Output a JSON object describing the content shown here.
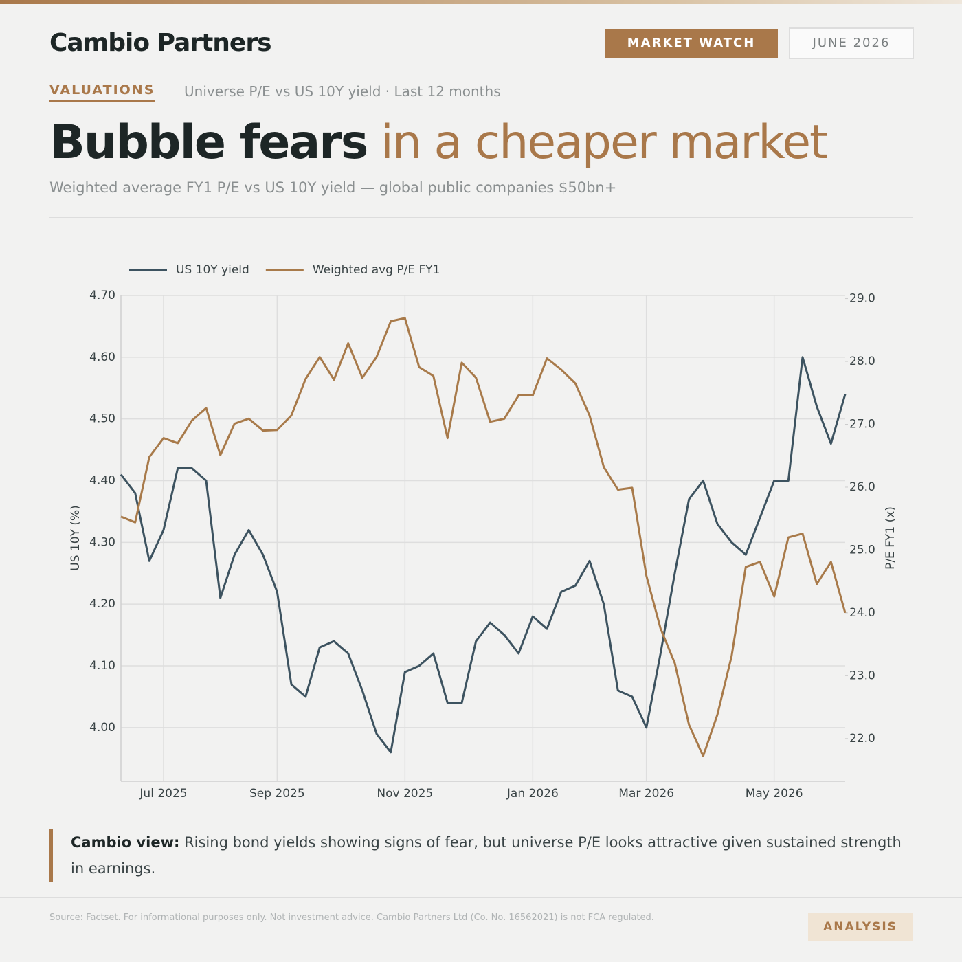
{
  "header": {
    "brand": "Cambio Partners",
    "badge": "MARKET WATCH",
    "date": "JUNE 2026",
    "section": "VALUATIONS",
    "section_note": "Universe P/E vs US 10Y yield · Last 12 months",
    "title_bold": "Bubble fears",
    "title_light": "in a cheaper market",
    "subtitle": "Weighted average FY1 P/E vs US 10Y yield — global public companies $50bn+"
  },
  "chart_data": {
    "type": "line",
    "categories": [
      null,
      null,
      null,
      "Jul 2025",
      null,
      null,
      null,
      null,
      null,
      null,
      null,
      "Sep 2025",
      null,
      null,
      null,
      null,
      null,
      null,
      null,
      null,
      "Nov 2025",
      null,
      null,
      null,
      null,
      null,
      null,
      null,
      null,
      "Jan 2026",
      null,
      null,
      null,
      null,
      null,
      null,
      null,
      "Mar 2026",
      null,
      null,
      null,
      null,
      null,
      null,
      null,
      null,
      "May 2026",
      null,
      null,
      null,
      null,
      null
    ],
    "series": [
      {
        "name": "US 10Y yield",
        "color": "#3d5360",
        "values": [
          4.41,
          4.38,
          4.27,
          4.32,
          4.42,
          4.42,
          4.4,
          4.21,
          4.28,
          4.32,
          4.28,
          4.22,
          4.07,
          4.05,
          4.13,
          4.14,
          4.12,
          4.06,
          3.99,
          3.96,
          4.09,
          4.1,
          4.12,
          4.04,
          4.04,
          4.14,
          4.17,
          4.15,
          4.12,
          4.18,
          4.16,
          4.22,
          4.23,
          4.27,
          4.2,
          4.06,
          4.05,
          4.0,
          4.12,
          4.25,
          4.37,
          4.4,
          4.33,
          4.3,
          4.28,
          4.34,
          4.4,
          4.4,
          4.6,
          4.52,
          4.46,
          4.54
        ]
      },
      {
        "name": "Weighted avg P/E FY1",
        "color": "#a87a4a",
        "axis": "y2",
        "values": [
          25.53,
          25.44,
          26.48,
          26.78,
          26.7,
          27.06,
          27.26,
          26.51,
          27.01,
          27.09,
          26.9,
          26.91,
          27.14,
          27.72,
          28.07,
          27.71,
          28.29,
          27.74,
          28.07,
          28.64,
          28.69,
          27.91,
          27.77,
          26.78,
          27.98,
          27.74,
          27.04,
          27.09,
          27.46,
          27.46,
          28.05,
          27.87,
          27.65,
          27.14,
          26.32,
          25.96,
          25.99,
          24.59,
          23.75,
          23.2,
          22.22,
          21.72,
          22.38,
          23.31,
          24.73,
          24.81,
          24.26,
          25.2,
          25.26,
          24.46,
          24.81,
          24.0
        ]
      }
    ],
    "ylabel": "US 10Y (%)",
    "y2label": "P/E FY1 (x)",
    "ylim": [
      3.913,
      4.7
    ],
    "yticks": [
      {
        "value": 4.0,
        "label": "4.00"
      },
      {
        "value": 4.1,
        "label": "4.10"
      },
      {
        "value": 4.2,
        "label": "4.20"
      },
      {
        "value": 4.3,
        "label": "4.30"
      },
      {
        "value": 4.4,
        "label": "4.40"
      },
      {
        "value": 4.5,
        "label": "4.50"
      },
      {
        "value": 4.6,
        "label": "4.60"
      },
      {
        "value": 4.7,
        "label": "4.70"
      }
    ],
    "y2lim": [
      21.32,
      29.05
    ],
    "y2ticks": [
      {
        "value": 22,
        "label": "22.0"
      },
      {
        "value": 23,
        "label": "23.0"
      },
      {
        "value": 24,
        "label": "24.0"
      },
      {
        "value": 25,
        "label": "25.0"
      },
      {
        "value": 26,
        "label": "26.0"
      },
      {
        "value": 27,
        "label": "27.0"
      },
      {
        "value": 28,
        "label": "28.0"
      },
      {
        "value": 29,
        "label": "29.0"
      }
    ],
    "grid": true,
    "legend": "top-left"
  },
  "note": {
    "lead": "Cambio view:",
    "text": "Rising bond yields showing signs of fear, but universe P/E looks attractive given sustained strength in earnings."
  },
  "footer": {
    "source": "Source: Factset. For informational purposes only. Not investment advice. Cambio Partners Ltd (Co. No. 16562021) is not FCA regulated.",
    "tag": "ANALYSIS"
  }
}
